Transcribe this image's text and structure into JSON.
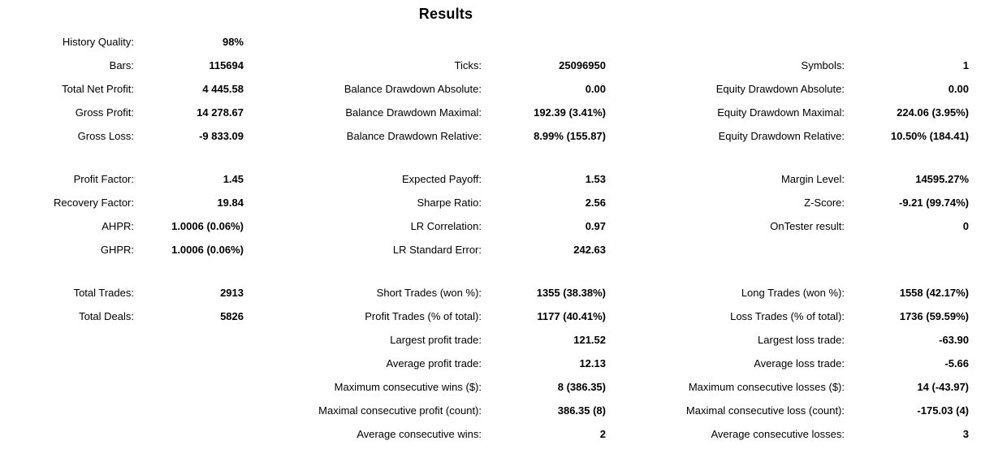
{
  "title": "Results",
  "colors": {
    "background": "#ffffff",
    "text": "#000000"
  },
  "sections": [
    {
      "rows": [
        [
          {
            "label": "History Quality:",
            "value": "98%"
          },
          null,
          null
        ],
        [
          {
            "label": "Bars:",
            "value": "115694"
          },
          {
            "label": "Ticks:",
            "value": "25096950"
          },
          {
            "label": "Symbols:",
            "value": "1"
          }
        ],
        [
          {
            "label": "Total Net Profit:",
            "value": "4 445.58"
          },
          {
            "label": "Balance Drawdown Absolute:",
            "value": "0.00"
          },
          {
            "label": "Equity Drawdown Absolute:",
            "value": "0.00"
          }
        ],
        [
          {
            "label": "Gross Profit:",
            "value": "14 278.67"
          },
          {
            "label": "Balance Drawdown Maximal:",
            "value": "192.39 (3.41%)"
          },
          {
            "label": "Equity Drawdown Maximal:",
            "value": "224.06 (3.95%)"
          }
        ],
        [
          {
            "label": "Gross Loss:",
            "value": "-9 833.09"
          },
          {
            "label": "Balance Drawdown Relative:",
            "value": "8.99% (155.87)"
          },
          {
            "label": "Equity Drawdown Relative:",
            "value": "10.50% (184.41)"
          }
        ]
      ]
    },
    {
      "rows": [
        [
          {
            "label": "Profit Factor:",
            "value": "1.45"
          },
          {
            "label": "Expected Payoff:",
            "value": "1.53"
          },
          {
            "label": "Margin Level:",
            "value": "14595.27%"
          }
        ],
        [
          {
            "label": "Recovery Factor:",
            "value": "19.84"
          },
          {
            "label": "Sharpe Ratio:",
            "value": "2.56"
          },
          {
            "label": "Z-Score:",
            "value": "-9.21 (99.74%)"
          }
        ],
        [
          {
            "label": "AHPR:",
            "value": "1.0006 (0.06%)"
          },
          {
            "label": "LR Correlation:",
            "value": "0.97"
          },
          {
            "label": "OnTester result:",
            "value": "0"
          }
        ],
        [
          {
            "label": "GHPR:",
            "value": "1.0006 (0.06%)"
          },
          {
            "label": "LR Standard Error:",
            "value": "242.63"
          },
          null
        ]
      ]
    },
    {
      "rows": [
        [
          {
            "label": "Total Trades:",
            "value": "2913"
          },
          {
            "label": "Short Trades (won %):",
            "value": "1355 (38.38%)"
          },
          {
            "label": "Long Trades (won %):",
            "value": "1558 (42.17%)"
          }
        ],
        [
          {
            "label": "Total Deals:",
            "value": "5826"
          },
          {
            "label": "Profit Trades (% of total):",
            "value": "1177 (40.41%)"
          },
          {
            "label": "Loss Trades (% of total):",
            "value": "1736 (59.59%)"
          }
        ],
        [
          null,
          {
            "label": "Largest profit trade:",
            "value": "121.52"
          },
          {
            "label": "Largest loss trade:",
            "value": "-63.90"
          }
        ],
        [
          null,
          {
            "label": "Average profit trade:",
            "value": "12.13"
          },
          {
            "label": "Average loss trade:",
            "value": "-5.66"
          }
        ],
        [
          null,
          {
            "label": "Maximum consecutive wins ($):",
            "value": "8 (386.35)"
          },
          {
            "label": "Maximum consecutive losses ($):",
            "value": "14 (-43.97)"
          }
        ],
        [
          null,
          {
            "label": "Maximal consecutive profit (count):",
            "value": "386.35 (8)"
          },
          {
            "label": "Maximal consecutive loss (count):",
            "value": "-175.03 (4)"
          }
        ],
        [
          null,
          {
            "label": "Average consecutive wins:",
            "value": "2"
          },
          {
            "label": "Average consecutive losses:",
            "value": "3"
          }
        ]
      ]
    }
  ]
}
